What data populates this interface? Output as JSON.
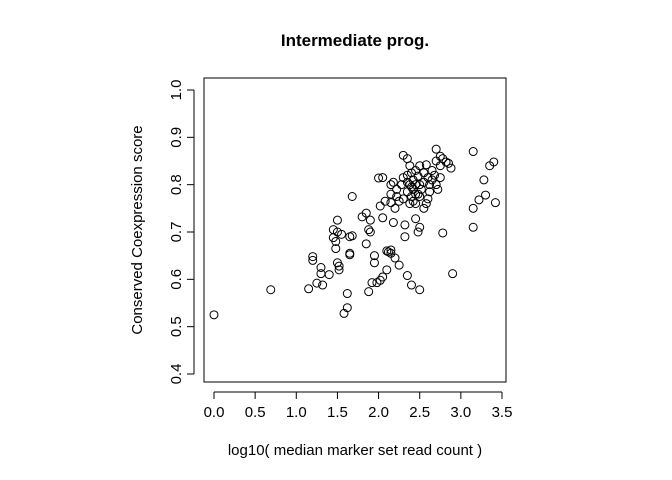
{
  "chart_data": {
    "type": "scatter",
    "title": "Intermediate prog.",
    "xlabel": "log10( median marker set read count )",
    "ylabel": "Conserved Coexpression score",
    "xlim": [
      0.0,
      3.5
    ],
    "ylim": [
      0.4,
      1.0
    ],
    "xticks": [
      "0.0",
      "0.5",
      "1.0",
      "1.5",
      "2.0",
      "2.5",
      "3.0",
      "3.5"
    ],
    "yticks": [
      "0.4",
      "0.5",
      "0.6",
      "0.7",
      "0.8",
      "0.9",
      "1.0"
    ],
    "grid": false,
    "marker": "open-circle",
    "points": [
      [
        0.0,
        0.525
      ],
      [
        0.69,
        0.578
      ],
      [
        1.15,
        0.58
      ],
      [
        1.2,
        0.648
      ],
      [
        1.2,
        0.64
      ],
      [
        1.25,
        0.592
      ],
      [
        1.3,
        0.625
      ],
      [
        1.3,
        0.612
      ],
      [
        1.32,
        0.588
      ],
      [
        1.4,
        0.61
      ],
      [
        1.45,
        0.705
      ],
      [
        1.45,
        0.688
      ],
      [
        1.48,
        0.68
      ],
      [
        1.5,
        0.7
      ],
      [
        1.48,
        0.665
      ],
      [
        1.5,
        0.635
      ],
      [
        1.52,
        0.628
      ],
      [
        1.52,
        0.62
      ],
      [
        1.5,
        0.725
      ],
      [
        1.55,
        0.695
      ],
      [
        1.58,
        0.528
      ],
      [
        1.62,
        0.54
      ],
      [
        1.62,
        0.57
      ],
      [
        1.65,
        0.655
      ],
      [
        1.65,
        0.652
      ],
      [
        1.65,
        0.69
      ],
      [
        1.68,
        0.692
      ],
      [
        1.68,
        0.775
      ],
      [
        1.8,
        0.732
      ],
      [
        1.85,
        0.74
      ],
      [
        1.85,
        0.675
      ],
      [
        1.88,
        0.705
      ],
      [
        1.9,
        0.725
      ],
      [
        1.9,
        0.7
      ],
      [
        1.88,
        0.574
      ],
      [
        1.92,
        0.593
      ],
      [
        1.95,
        0.65
      ],
      [
        1.95,
        0.635
      ],
      [
        1.98,
        0.593
      ],
      [
        2.0,
        0.814
      ],
      [
        2.02,
        0.755
      ],
      [
        2.02,
        0.598
      ],
      [
        2.05,
        0.815
      ],
      [
        2.05,
        0.73
      ],
      [
        2.05,
        0.605
      ],
      [
        2.08,
        0.765
      ],
      [
        2.1,
        0.66
      ],
      [
        2.1,
        0.62
      ],
      [
        2.12,
        0.658
      ],
      [
        2.15,
        0.8
      ],
      [
        2.15,
        0.78
      ],
      [
        2.15,
        0.762
      ],
      [
        2.15,
        0.662
      ],
      [
        2.15,
        0.655
      ],
      [
        2.18,
        0.805
      ],
      [
        2.18,
        0.72
      ],
      [
        2.2,
        0.75
      ],
      [
        2.2,
        0.645
      ],
      [
        2.22,
        0.79
      ],
      [
        2.22,
        0.775
      ],
      [
        2.25,
        0.765
      ],
      [
        2.25,
        0.63
      ],
      [
        2.28,
        0.8
      ],
      [
        2.3,
        0.862
      ],
      [
        2.3,
        0.815
      ],
      [
        2.3,
        0.77
      ],
      [
        2.32,
        0.715
      ],
      [
        2.32,
        0.69
      ],
      [
        2.35,
        0.855
      ],
      [
        2.35,
        0.82
      ],
      [
        2.35,
        0.805
      ],
      [
        2.35,
        0.785
      ],
      [
        2.35,
        0.608
      ],
      [
        2.38,
        0.84
      ],
      [
        2.38,
        0.8
      ],
      [
        2.38,
        0.76
      ],
      [
        2.4,
        0.825
      ],
      [
        2.4,
        0.795
      ],
      [
        2.4,
        0.775
      ],
      [
        2.4,
        0.588
      ],
      [
        2.42,
        0.81
      ],
      [
        2.42,
        0.79
      ],
      [
        2.42,
        0.765
      ],
      [
        2.45,
        0.83
      ],
      [
        2.45,
        0.8
      ],
      [
        2.45,
        0.78
      ],
      [
        2.45,
        0.76
      ],
      [
        2.45,
        0.728
      ],
      [
        2.48,
        0.818
      ],
      [
        2.48,
        0.78
      ],
      [
        2.48,
        0.7
      ],
      [
        2.5,
        0.84
      ],
      [
        2.5,
        0.8
      ],
      [
        2.5,
        0.775
      ],
      [
        2.5,
        0.71
      ],
      [
        2.5,
        0.578
      ],
      [
        2.52,
        0.79
      ],
      [
        2.55,
        0.825
      ],
      [
        2.55,
        0.805
      ],
      [
        2.55,
        0.75
      ],
      [
        2.58,
        0.842
      ],
      [
        2.58,
        0.76
      ],
      [
        2.6,
        0.815
      ],
      [
        2.6,
        0.77
      ],
      [
        2.62,
        0.8
      ],
      [
        2.62,
        0.785
      ],
      [
        2.65,
        0.83
      ],
      [
        2.65,
        0.81
      ],
      [
        2.68,
        0.82
      ],
      [
        2.7,
        0.875
      ],
      [
        2.7,
        0.85
      ],
      [
        2.7,
        0.8
      ],
      [
        2.72,
        0.79
      ],
      [
        2.75,
        0.86
      ],
      [
        2.75,
        0.84
      ],
      [
        2.75,
        0.815
      ],
      [
        2.78,
        0.855
      ],
      [
        2.78,
        0.698
      ],
      [
        2.82,
        0.848
      ],
      [
        2.85,
        0.845
      ],
      [
        2.88,
        0.835
      ],
      [
        2.9,
        0.612
      ],
      [
        3.15,
        0.87
      ],
      [
        3.15,
        0.75
      ],
      [
        3.15,
        0.71
      ],
      [
        3.22,
        0.768
      ],
      [
        3.28,
        0.81
      ],
      [
        3.3,
        0.778
      ],
      [
        3.35,
        0.84
      ],
      [
        3.4,
        0.848
      ],
      [
        3.42,
        0.762
      ]
    ]
  }
}
